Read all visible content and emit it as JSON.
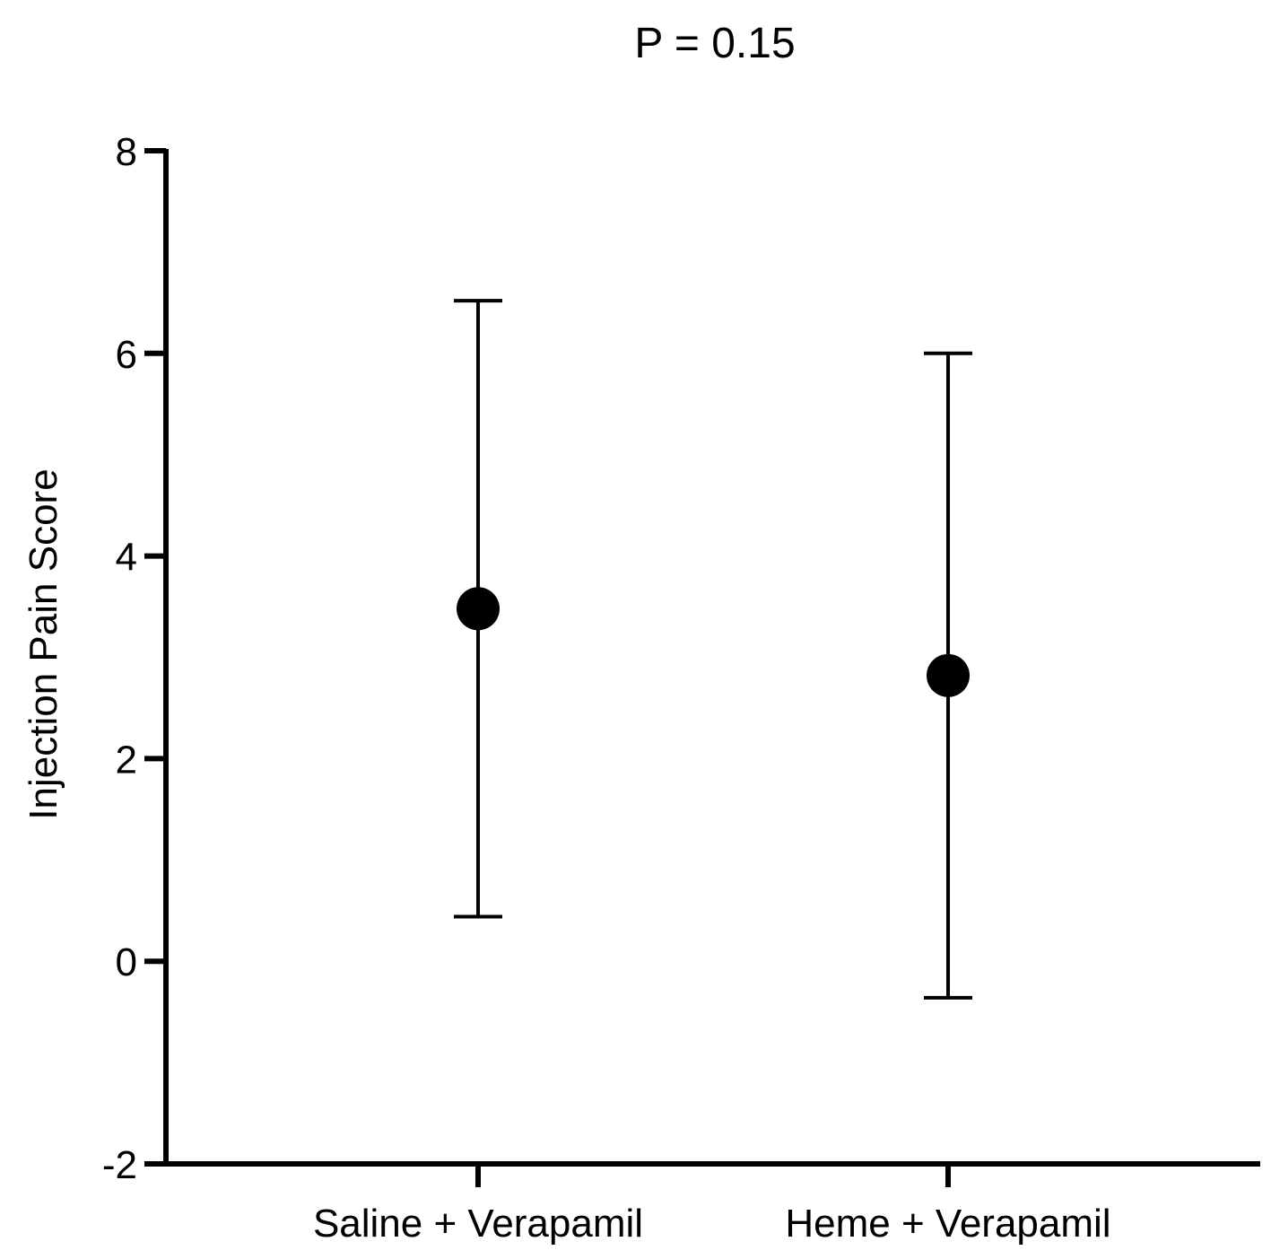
{
  "chart_data": {
    "type": "scatter",
    "title": "P = 0.15",
    "xlabel": "",
    "ylabel": "Injection Pain Score",
    "ylim": [
      -2,
      8
    ],
    "yticks": [
      -2,
      0,
      2,
      4,
      6,
      8
    ],
    "categories": [
      "Saline + Verapamil",
      "Heme + Verapamil"
    ],
    "series": [
      {
        "values": [
          3.48,
          2.82
        ],
        "error_low": [
          0.44,
          -0.36
        ],
        "error_high": [
          6.52,
          6.0
        ]
      }
    ],
    "grid": false,
    "legend": "none"
  },
  "colors": {
    "axis": "#000000",
    "marker": "#000000",
    "background": "#ffffff"
  }
}
